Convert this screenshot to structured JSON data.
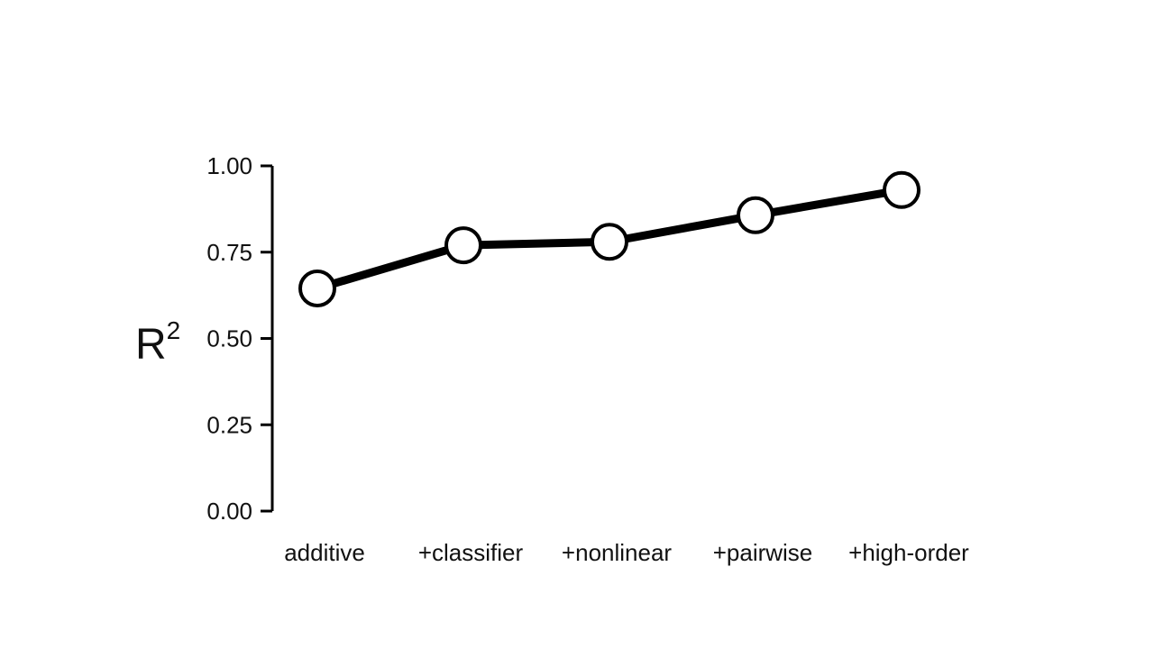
{
  "chart_data": {
    "type": "line",
    "title": "",
    "xlabel": "",
    "ylabel": "R",
    "ylabel_superscript": "2",
    "categories": [
      "additive",
      "+classifier",
      "+nonlinear",
      "+pairwise",
      "+high-order"
    ],
    "values": [
      0.645,
      0.77,
      0.78,
      0.857,
      0.93
    ],
    "ylim": [
      0,
      1
    ],
    "yticks": [
      "0.00",
      "0.25",
      "0.50",
      "0.75",
      "1.00"
    ],
    "grid": false,
    "legend": "none",
    "colors": {
      "line": "#000000",
      "marker_fill": "#ffffff",
      "marker_edge": "#000000"
    }
  }
}
